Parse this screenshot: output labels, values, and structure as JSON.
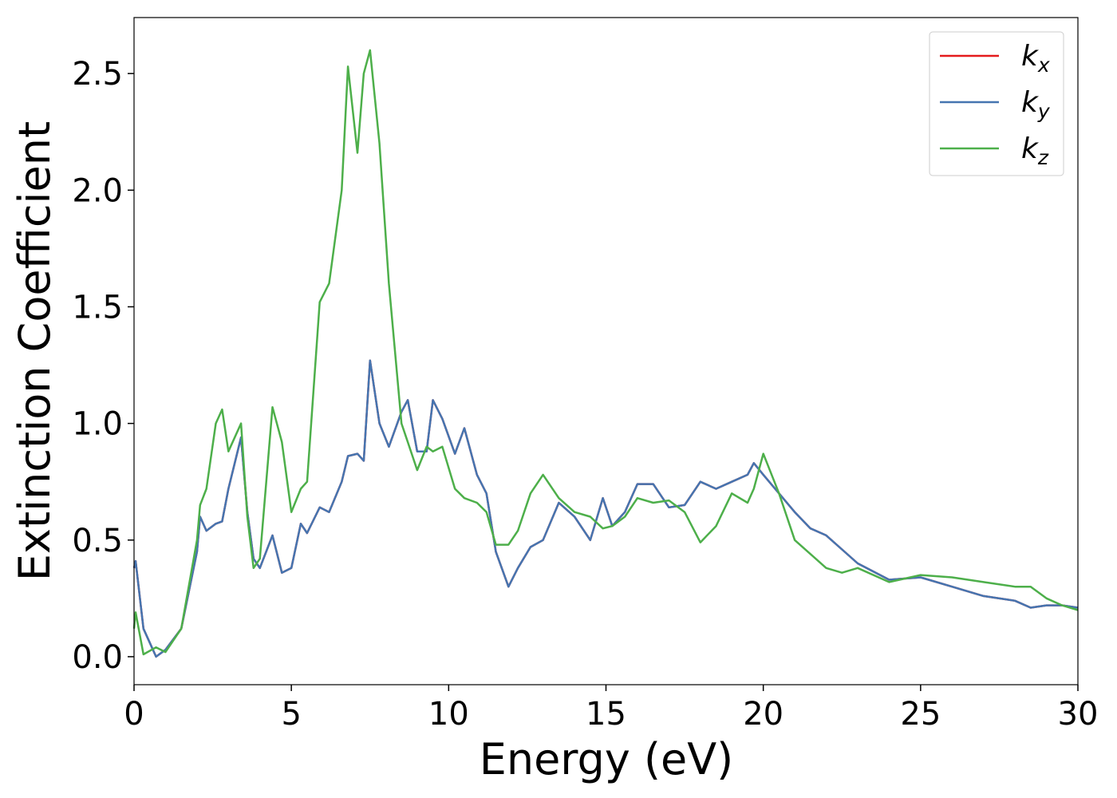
{
  "chart_data": {
    "type": "line",
    "xlabel": "Energy (eV)",
    "ylabel": "Extinction Coefficient",
    "x": [
      0,
      0.05,
      0.3,
      0.7,
      1.0,
      1.5,
      2.0,
      2.1,
      2.3,
      2.6,
      2.8,
      3.0,
      3.4,
      3.6,
      3.8,
      4.0,
      4.4,
      4.7,
      5.0,
      5.3,
      5.5,
      5.9,
      6.2,
      6.6,
      6.8,
      7.1,
      7.3,
      7.5,
      7.8,
      8.1,
      8.5,
      8.7,
      9.0,
      9.3,
      9.5,
      9.8,
      10.2,
      10.5,
      10.9,
      11.2,
      11.5,
      11.9,
      12.2,
      12.6,
      13.0,
      13.5,
      14.0,
      14.5,
      14.9,
      15.2,
      15.6,
      16.0,
      16.5,
      17.0,
      17.5,
      18.0,
      18.5,
      19.0,
      19.5,
      19.7,
      20.0,
      20.5,
      21.0,
      21.5,
      22.0,
      22.5,
      23.0,
      24.0,
      25.0,
      26.0,
      27.0,
      28.0,
      28.5,
      29.0,
      29.5,
      30.0
    ],
    "series": [
      {
        "name": "kx",
        "color": "#e41a1c",
        "values": [
          0.38,
          0.41,
          0.12,
          0.0,
          0.03,
          0.12,
          0.45,
          0.6,
          0.54,
          0.57,
          0.58,
          0.72,
          0.94,
          0.62,
          0.42,
          0.38,
          0.52,
          0.36,
          0.38,
          0.57,
          0.53,
          0.64,
          0.62,
          0.75,
          0.86,
          0.87,
          0.84,
          1.27,
          1.0,
          0.9,
          1.05,
          1.1,
          0.88,
          0.88,
          1.1,
          1.02,
          0.87,
          0.98,
          0.78,
          0.7,
          0.45,
          0.3,
          0.38,
          0.47,
          0.5,
          0.66,
          0.6,
          0.5,
          0.68,
          0.56,
          0.62,
          0.74,
          0.74,
          0.64,
          0.65,
          0.75,
          0.72,
          0.75,
          0.78,
          0.83,
          0.78,
          0.7,
          0.62,
          0.55,
          0.52,
          0.46,
          0.4,
          0.33,
          0.34,
          0.3,
          0.26,
          0.24,
          0.21,
          0.22,
          0.22,
          0.21
        ]
      },
      {
        "name": "ky",
        "color": "#4575b0",
        "values": [
          0.38,
          0.41,
          0.12,
          0.0,
          0.03,
          0.12,
          0.45,
          0.6,
          0.54,
          0.57,
          0.58,
          0.72,
          0.94,
          0.62,
          0.42,
          0.38,
          0.52,
          0.36,
          0.38,
          0.57,
          0.53,
          0.64,
          0.62,
          0.75,
          0.86,
          0.87,
          0.84,
          1.27,
          1.0,
          0.9,
          1.05,
          1.1,
          0.88,
          0.88,
          1.1,
          1.02,
          0.87,
          0.98,
          0.78,
          0.7,
          0.45,
          0.3,
          0.38,
          0.47,
          0.5,
          0.66,
          0.6,
          0.5,
          0.68,
          0.56,
          0.62,
          0.74,
          0.74,
          0.64,
          0.65,
          0.75,
          0.72,
          0.75,
          0.78,
          0.83,
          0.78,
          0.7,
          0.62,
          0.55,
          0.52,
          0.46,
          0.4,
          0.33,
          0.34,
          0.3,
          0.26,
          0.24,
          0.21,
          0.22,
          0.22,
          0.21
        ]
      },
      {
        "name": "kz",
        "color": "#4daf4a",
        "values": [
          0.12,
          0.19,
          0.01,
          0.04,
          0.02,
          0.12,
          0.5,
          0.65,
          0.72,
          1.0,
          1.06,
          0.88,
          1.0,
          0.6,
          0.38,
          0.42,
          1.07,
          0.92,
          0.62,
          0.72,
          0.75,
          1.52,
          1.6,
          2.0,
          2.53,
          2.16,
          2.5,
          2.6,
          2.2,
          1.6,
          1.0,
          0.92,
          0.8,
          0.9,
          0.88,
          0.9,
          0.72,
          0.68,
          0.66,
          0.62,
          0.48,
          0.48,
          0.54,
          0.7,
          0.78,
          0.68,
          0.62,
          0.6,
          0.55,
          0.56,
          0.6,
          0.68,
          0.66,
          0.67,
          0.62,
          0.49,
          0.56,
          0.7,
          0.66,
          0.72,
          0.87,
          0.7,
          0.5,
          0.44,
          0.38,
          0.36,
          0.38,
          0.32,
          0.35,
          0.34,
          0.32,
          0.3,
          0.3,
          0.25,
          0.22,
          0.2
        ]
      }
    ],
    "xlim": [
      0,
      30
    ],
    "xticks": [
      0,
      5,
      10,
      15,
      20,
      25,
      30
    ],
    "ylim": [
      -0.12,
      2.74
    ],
    "yticks": [
      {
        "value": 0,
        "label": "0.0"
      },
      {
        "value": 0.5,
        "label": "0.5"
      },
      {
        "value": 1,
        "label": "1.0"
      },
      {
        "value": 1.5,
        "label": "1.5"
      },
      {
        "value": 2,
        "label": "2.0"
      },
      {
        "value": 2.5,
        "label": "2.5"
      }
    ],
    "legend": "upper right"
  }
}
